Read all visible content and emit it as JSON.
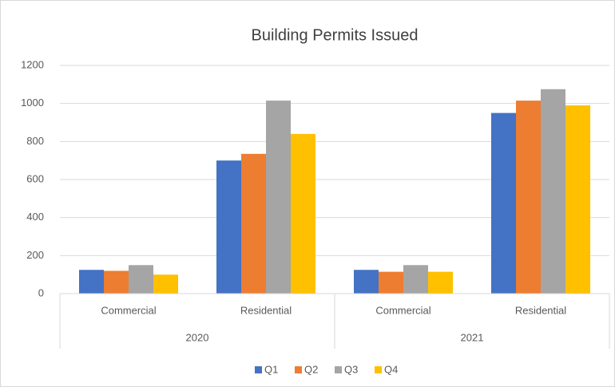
{
  "chart_data": {
    "type": "bar",
    "title": "Building Permits Issued",
    "groups": [
      {
        "name": "2020",
        "categories": [
          "Commercial",
          "Residential"
        ]
      },
      {
        "name": "2021",
        "categories": [
          "Commercial",
          "Residential"
        ]
      }
    ],
    "series": [
      {
        "name": "Q1",
        "color": "#4472c4",
        "values": [
          125,
          700,
          125,
          950
        ]
      },
      {
        "name": "Q2",
        "color": "#ed7d31",
        "values": [
          120,
          735,
          115,
          1015
        ]
      },
      {
        "name": "Q3",
        "color": "#a5a5a5",
        "values": [
          150,
          1015,
          150,
          1075
        ]
      },
      {
        "name": "Q4",
        "color": "#ffc000",
        "values": [
          100,
          840,
          115,
          990
        ]
      }
    ],
    "ylim": [
      0,
      1200
    ],
    "yticks": [
      0,
      200,
      400,
      600,
      800,
      1000,
      1200
    ],
    "grid": true,
    "legend": "bottom"
  }
}
